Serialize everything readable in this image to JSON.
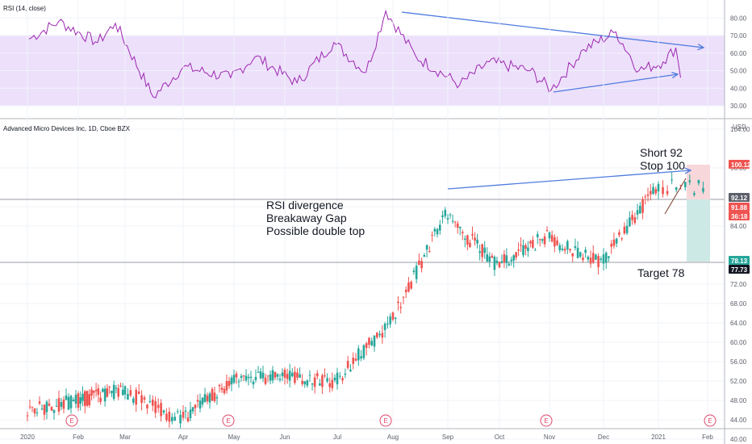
{
  "colors": {
    "up": "#26a69a",
    "down": "#ef5350",
    "rsi_line": "#9c27b0",
    "rsi_band": "#ede0fb",
    "trend_blue": "#4f7be0",
    "grid": "#f0f3fa",
    "level_line": "#787b86",
    "stop_zone": "#f8d7da",
    "target_zone": "#cde9e6",
    "tag_red": "#ef5350",
    "tag_dark": "#131722",
    "tag_green": "#26a69a",
    "tag_gray": "#5d606b"
  },
  "rsi_pane": {
    "title": "RSI (14, close)",
    "ticks": [
      "80.00",
      "70.00",
      "60.00",
      "50.00",
      "40.00",
      "30.00"
    ]
  },
  "price_pane": {
    "title": "Advanced Micro Devices Inc, 1D, Cboe BZX",
    "currency": "USD",
    "ticks": [
      "104.00",
      "96.00",
      "88.00",
      "84.00",
      "72.00",
      "68.00",
      "64.00",
      "60.00",
      "56.00",
      "52.00",
      "48.00",
      "44.00",
      "40.00"
    ],
    "price_tags": [
      "100.12",
      "92.12",
      "91.88",
      "36:18",
      "78.13",
      "77.73"
    ]
  },
  "x_axis": {
    "labels": [
      "2020",
      "Feb",
      "Mar",
      "Apr",
      "May",
      "Jun",
      "Jul",
      "Aug",
      "Sep",
      "Oct",
      "Nov",
      "Dec",
      "2021",
      "Feb"
    ]
  },
  "earnings_marker": "E",
  "annotations": {
    "analysis": [
      "RSI divergence",
      "Breakaway Gap",
      "Possible double top"
    ],
    "short": "Short 92",
    "stop": "Stop 100",
    "target": "Target 78"
  },
  "chart_data": [
    {
      "type": "line",
      "series": [
        {
          "x": [
            "2020-01-02",
            "2020-01-20",
            "2020-02-13",
            "2020-02-24",
            "2020-03-16",
            "2020-04-01",
            "2020-04-29",
            "2020-05-14",
            "2020-06-08",
            "2020-06-29",
            "2020-07-17",
            "2020-07-28",
            "2020-08-14",
            "2020-09-08",
            "2020-09-25",
            "2020-10-20",
            "2020-11-02",
            "2020-11-20",
            "2020-12-08",
            "2020-12-21",
            "2021-01-04",
            "2021-01-12",
            "2021-01-15"
          ],
          "values": [
            68,
            78,
            66,
            77,
            35,
            52,
            46,
            58,
            43,
            66,
            49,
            84,
            58,
            42,
            55,
            50,
            39,
            62,
            72,
            50,
            55,
            63,
            46
          ]
        }
      ],
      "ylim": [
        28,
        86
      ]
    },
    {
      "type": "candlestick",
      "series": [
        {
          "x": [
            "2020-01",
            "2020-02",
            "2020-03",
            "2020-04",
            "2020-05",
            "2020-06",
            "2020-07",
            "2020-08",
            "2020-09",
            "2020-10",
            "2020-11",
            "2020-12",
            "2021-01"
          ],
          "values": [
            48,
            50,
            44,
            52,
            53,
            52,
            64,
            86,
            76,
            82,
            76,
            92,
            92
          ]
        }
      ],
      "ylim": [
        38,
        108
      ]
    }
  ]
}
